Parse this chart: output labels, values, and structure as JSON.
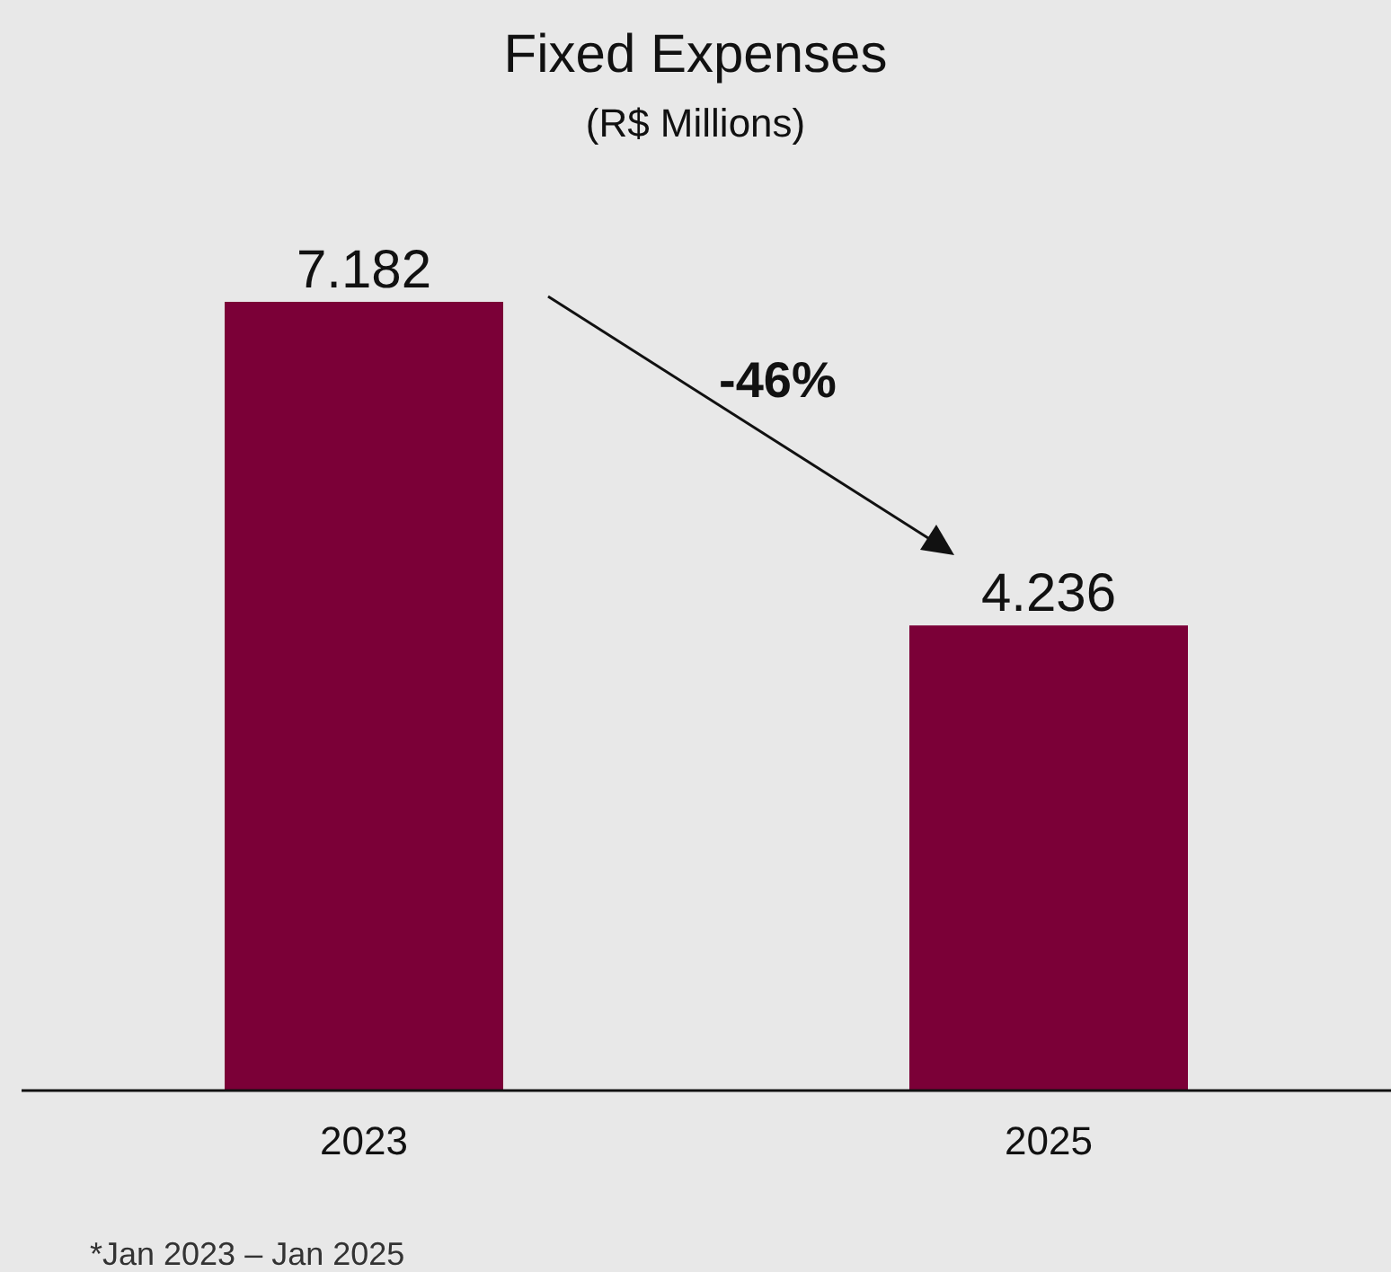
{
  "chart_data": {
    "type": "bar",
    "title": "Fixed Expenses",
    "subtitle": "(R$ Millions)",
    "categories": [
      "2023",
      "2025"
    ],
    "values": [
      7.182,
      4.236
    ],
    "color": "#7b0037",
    "data_labels": true,
    "annotations": [
      "-46%",
      "*Jan 2023 – Jan 2025"
    ]
  }
}
